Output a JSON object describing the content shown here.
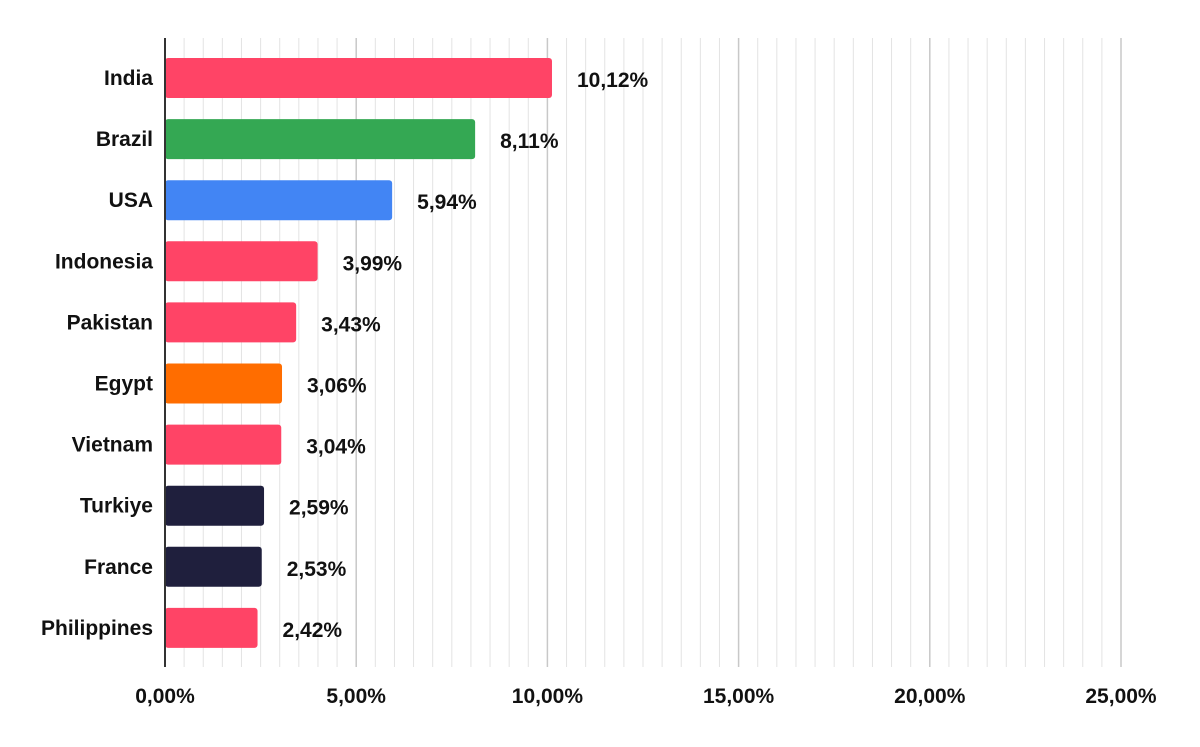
{
  "chart_data": {
    "type": "bar",
    "orientation": "horizontal",
    "title": "",
    "xlabel": "",
    "ylabel": "",
    "categories": [
      "India",
      "Brazil",
      "USA",
      "Indonesia",
      "Pakistan",
      "Egypt",
      "Vietnam",
      "Turkiye",
      "France",
      "Philippines"
    ],
    "values": [
      10.12,
      8.11,
      5.94,
      3.99,
      3.43,
      3.06,
      3.04,
      2.59,
      2.53,
      2.42
    ],
    "value_labels": [
      "10,12%",
      "8,11%",
      "5,94%",
      "3,99%",
      "3,43%",
      "3,06%",
      "3,04%",
      "2,59%",
      "2,53%",
      "2,42%"
    ],
    "colors": [
      "#ff4466",
      "#34a853",
      "#4285f4",
      "#ff4466",
      "#ff4466",
      "#ff6d00",
      "#ff4466",
      "#1f1f3d",
      "#1f1f3d",
      "#ff4466"
    ],
    "xlim": [
      0,
      25
    ],
    "x_ticks": [
      0,
      5,
      10,
      15,
      20,
      25
    ],
    "x_tick_labels": [
      "0,00%",
      "5,00%",
      "10,00%",
      "15,00%",
      "20,00%",
      "25,00%"
    ],
    "grid": true,
    "minor_grid": true,
    "legend": "none"
  }
}
